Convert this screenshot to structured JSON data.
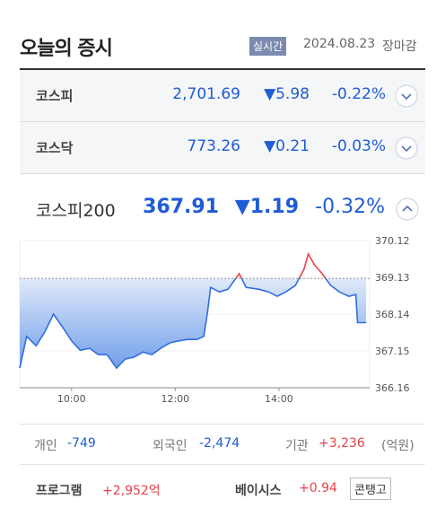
{
  "header": {
    "title": "오늘의 증시",
    "badge": "실시간",
    "date": "2024.08.23",
    "status": "장마감"
  },
  "indices": [
    {
      "name": "코스피",
      "value": "2,701.69",
      "change": "▼5.98",
      "percent": "-0.22%"
    },
    {
      "name": "코스닥",
      "value": "773.26",
      "change": "▼0.21",
      "percent": "-0.03%"
    }
  ],
  "featured": {
    "name": "코스피200",
    "value": "367.91",
    "change": "▼1.19",
    "percent": "-0.32%"
  },
  "chart_data": {
    "type": "line",
    "x": [
      540,
      548,
      559,
      569,
      579,
      590,
      600,
      610,
      621,
      631,
      641,
      652,
      662,
      672,
      683,
      693,
      703,
      714,
      724,
      734,
      745,
      753,
      757,
      761,
      771,
      781,
      794,
      802,
      817,
      828,
      838,
      848,
      859,
      869,
      874,
      881,
      890,
      900,
      910,
      921,
      929,
      931,
      941
    ],
    "values": [
      366.69,
      367.54,
      367.29,
      367.66,
      368.14,
      367.78,
      367.42,
      367.17,
      367.22,
      367.05,
      367.05,
      366.69,
      366.93,
      366.98,
      367.12,
      367.05,
      367.22,
      367.37,
      367.42,
      367.46,
      367.46,
      367.54,
      368.14,
      368.86,
      368.74,
      368.81,
      369.23,
      368.86,
      368.81,
      368.74,
      368.62,
      368.74,
      368.91,
      369.35,
      369.76,
      369.47,
      369.23,
      368.91,
      368.74,
      368.62,
      368.67,
      367.91,
      367.91
    ],
    "baseline": 369.1,
    "color_up": "#e8414b",
    "color_down": "#2f6ee0",
    "xlim": [
      540,
      945
    ],
    "ylim": [
      366.16,
      370.12
    ],
    "xticks": [
      {
        "value": 600,
        "label": "10:00"
      },
      {
        "value": 720,
        "label": "12:00"
      },
      {
        "value": 840,
        "label": "14:00"
      }
    ],
    "yticks": [
      366.16,
      367.15,
      368.14,
      369.13,
      370.12
    ]
  },
  "investors": {
    "items": [
      {
        "label": "개인",
        "value": "-749"
      },
      {
        "label": "외국인",
        "value": "-2,474"
      },
      {
        "label": "기관",
        "value": "+3,236"
      }
    ],
    "unit": "(억원)"
  },
  "program": {
    "label": "프로그램",
    "value": "+2,952억",
    "basis_label": "베이시스",
    "basis_value": "+0.94",
    "button": "콘탱고"
  }
}
